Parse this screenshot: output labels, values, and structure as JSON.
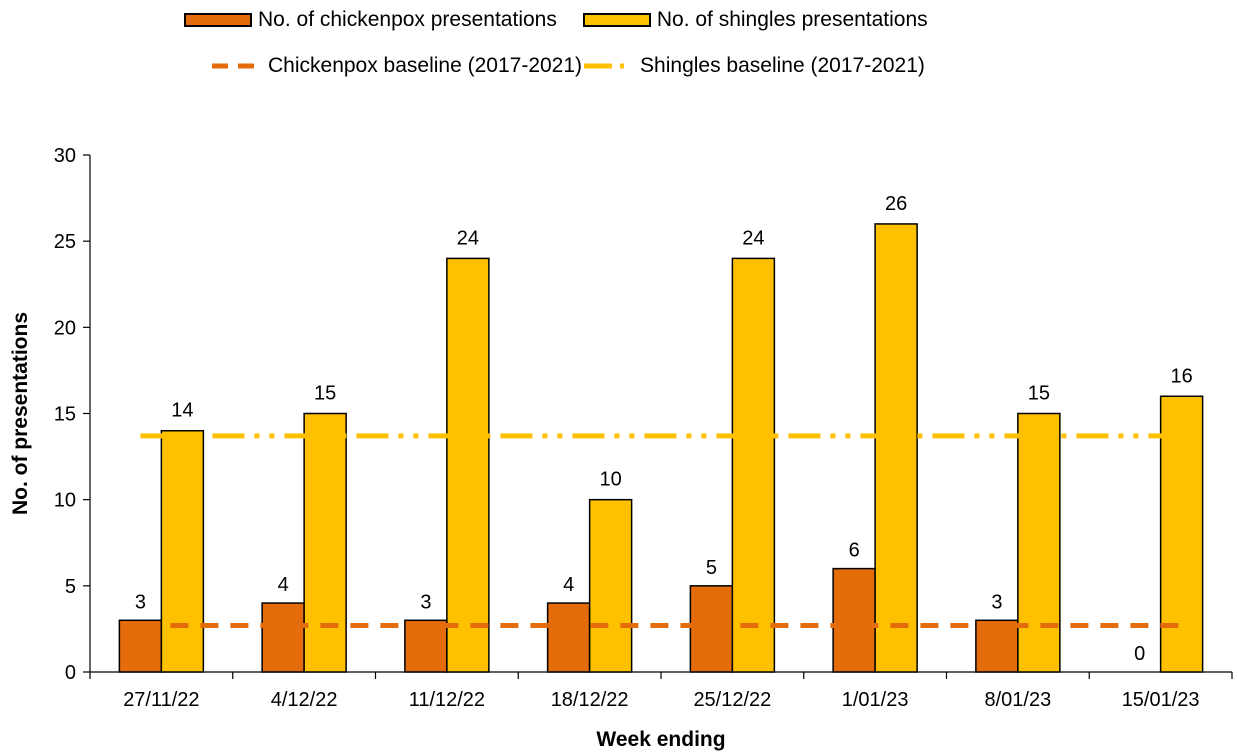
{
  "legend": {
    "cp_bar": "No. of chickenpox presentations",
    "sh_bar": "No. of shingles presentations",
    "cp_base": "Chickenpox baseline (2017-2021)",
    "sh_base": "Shingles baseline (2017-2021)"
  },
  "colors": {
    "chickenpox": "#E46C0A",
    "shingles": "#FFC000"
  },
  "chart_data": {
    "type": "bar",
    "title": "",
    "xlabel": "Week ending",
    "ylabel": "No. of presentations",
    "ylim": [
      0,
      30
    ],
    "yticks": [
      0,
      5,
      10,
      15,
      20,
      25,
      30
    ],
    "categories": [
      "27/11/22",
      "4/12/22",
      "11/12/22",
      "18/12/22",
      "25/12/22",
      "1/01/23",
      "8/01/23",
      "15/01/23"
    ],
    "series": [
      {
        "name": "No. of chickenpox presentations",
        "type": "bar",
        "color": "#E46C0A",
        "values": [
          3,
          4,
          3,
          4,
          5,
          6,
          3,
          0
        ]
      },
      {
        "name": "No. of shingles presentations",
        "type": "bar",
        "color": "#FFC000",
        "values": [
          14,
          15,
          24,
          10,
          24,
          26,
          15,
          16
        ]
      },
      {
        "name": "Chickenpox baseline (2017-2021)",
        "type": "line",
        "style": "dashed",
        "color": "#E46C0A",
        "value": 2.7
      },
      {
        "name": "Shingles baseline (2017-2021)",
        "type": "line",
        "style": "dash-dot-dot",
        "color": "#FFC000",
        "value": 13.7
      }
    ],
    "grid": false,
    "legend_position": "top"
  }
}
